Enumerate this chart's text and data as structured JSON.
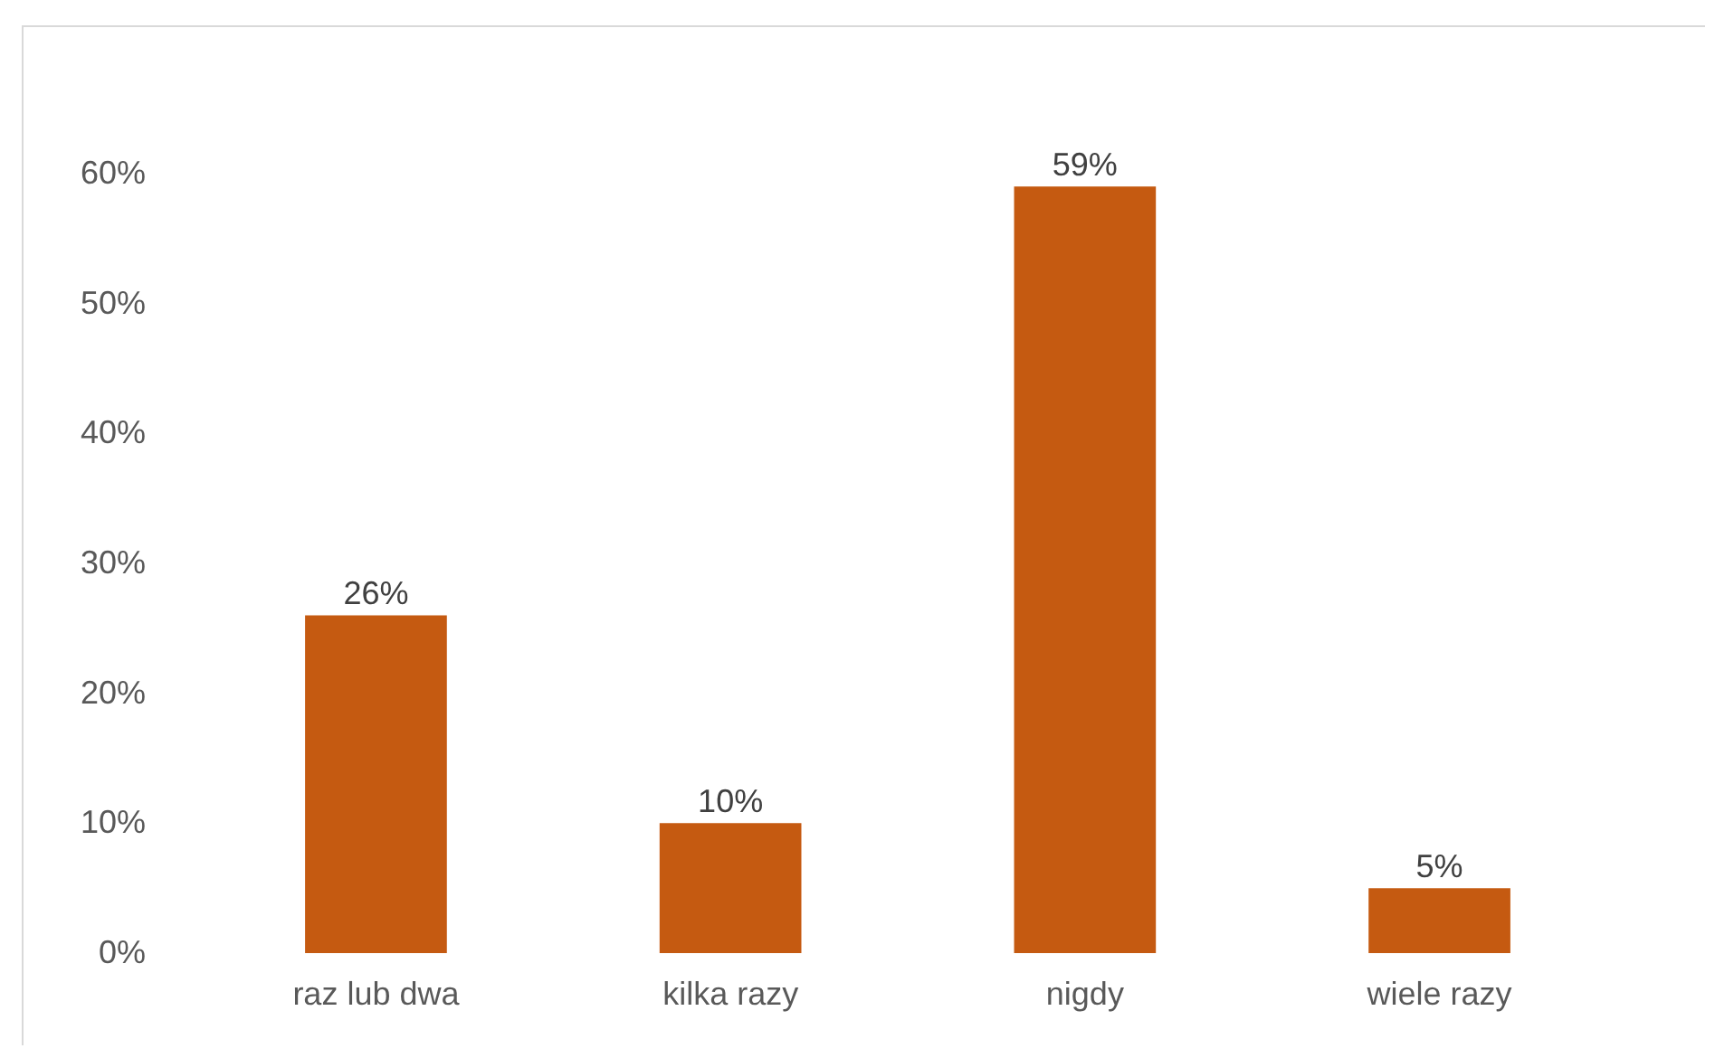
{
  "chart_data": {
    "type": "bar",
    "categories": [
      "raz lub dwa",
      "kilka razy",
      "nigdy",
      "wiele razy"
    ],
    "values": [
      26,
      10,
      59,
      5
    ],
    "value_labels": [
      "26%",
      "10%",
      "59%",
      "5%"
    ],
    "color": "#c55a11",
    "ylim": [
      0,
      60
    ],
    "yticks": [
      {
        "value": 0,
        "label": "0%"
      },
      {
        "value": 10,
        "label": "10%"
      },
      {
        "value": 20,
        "label": "20%"
      },
      {
        "value": 30,
        "label": "30%"
      },
      {
        "value": 40,
        "label": "40%"
      },
      {
        "value": 50,
        "label": "50%"
      },
      {
        "value": 60,
        "label": "60%"
      }
    ],
    "grid": false
  }
}
